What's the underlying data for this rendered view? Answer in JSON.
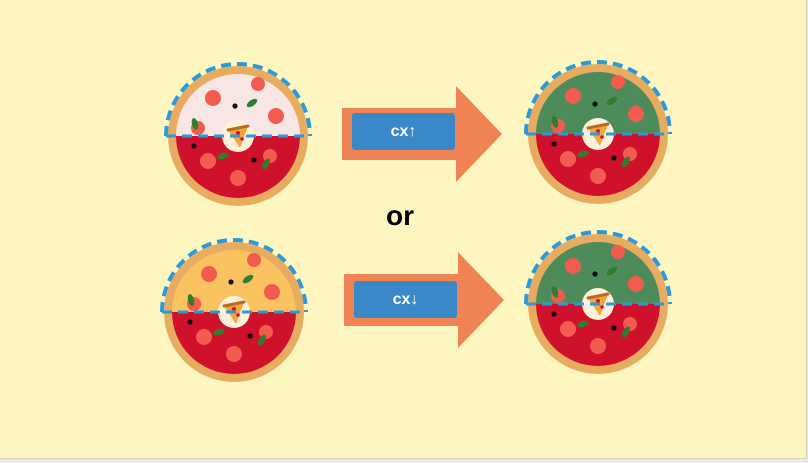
{
  "colors": {
    "background": "#fef6c0",
    "crust": "#e8ac60",
    "sauce": "#d0112b",
    "pepperoni": "#f25c4f",
    "olive": "#111111",
    "basil": "#2f7d2f",
    "cut_line": "#2a9ad8",
    "arrow": "#f08354",
    "badge": "#3b88c9"
  },
  "icons": {
    "center": "pizza-slice-icon"
  },
  "rows": [
    {
      "before_top_color": "#f8e6e4",
      "after_top_color": "#4d8b5a",
      "arrow_label": "cx↑"
    },
    {
      "before_top_color": "#fac35f",
      "after_top_color": "#4d8b5a",
      "arrow_label": "cx↓"
    }
  ],
  "separator": "or"
}
